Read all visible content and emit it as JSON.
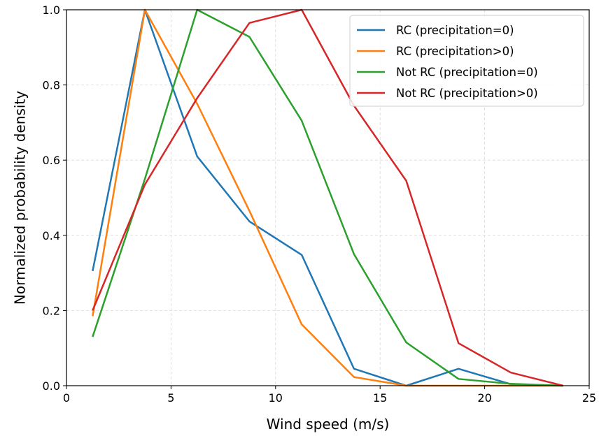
{
  "chart_data": {
    "type": "line",
    "xlabel": "Wind speed (m/s)",
    "ylabel": "Normalized probability density",
    "xlim": [
      0,
      25
    ],
    "ylim": [
      0,
      1.0
    ],
    "xticks": [
      0,
      5,
      10,
      15,
      20,
      25
    ],
    "yticks": [
      0.0,
      0.2,
      0.4,
      0.6,
      0.8,
      1.0
    ],
    "xtick_labels": [
      "0",
      "5",
      "10",
      "15",
      "20",
      "25"
    ],
    "ytick_labels": [
      "0.0",
      "0.2",
      "0.4",
      "0.6",
      "0.8",
      "1.0"
    ],
    "grid": true,
    "legend_position": "top-right",
    "x": [
      1.25,
      3.75,
      6.25,
      8.75,
      11.25,
      13.75,
      16.25,
      18.75,
      21.25,
      23.75
    ],
    "series": [
      {
        "name": "RC (precipitation=0)",
        "color": "#1f77b4",
        "values": [
          0.305,
          1.0,
          0.61,
          0.437,
          0.348,
          0.045,
          0.0,
          0.045,
          0.004,
          0.0
        ]
      },
      {
        "name": "RC (precipitation>0)",
        "color": "#ff7f0e",
        "values": [
          0.185,
          1.0,
          0.75,
          0.465,
          0.163,
          0.023,
          0.0,
          0.0,
          0.0,
          0.0
        ]
      },
      {
        "name": "Not RC (precipitation=0)",
        "color": "#2ca02c",
        "values": [
          0.13,
          0.55,
          1.0,
          0.928,
          0.705,
          0.35,
          0.115,
          0.018,
          0.005,
          0.0
        ]
      },
      {
        "name": "Not RC (precipitation>0)",
        "color": "#d62728",
        "values": [
          0.2,
          0.535,
          0.765,
          0.965,
          1.0,
          0.745,
          0.545,
          0.113,
          0.035,
          0.0
        ]
      }
    ]
  }
}
